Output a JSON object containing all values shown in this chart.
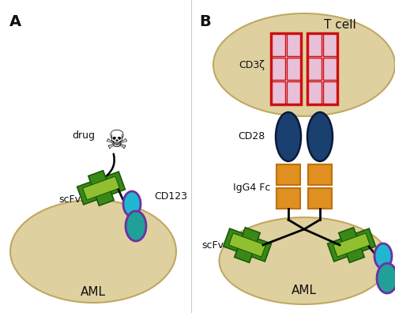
{
  "bg_color": "#ffffff",
  "cell_color": "#dfd0a0",
  "cell_edge_color": "#c0a860",
  "scfv_green_dark": "#3a8818",
  "scfv_green_light": "#90c030",
  "cd123_cyan": "#20b8d0",
  "cd123_teal": "#20a098",
  "cd123_purple": "#7030a0",
  "cd28_navy": "#1a4070",
  "cd28_mid": "#2060a0",
  "cd3z_pink": "#e8c0d8",
  "cd3z_red": "#cc1010",
  "igg4_orange": "#e09020",
  "igg4_line": "#c07010",
  "linker_color": "#101010",
  "text_color": "#101010",
  "label_a": "A",
  "label_b": "B",
  "label_aml": "AML",
  "label_tcell": "T cell",
  "label_cd3z": "CD3ζ",
  "label_cd28": "CD28",
  "label_igg4fc": "IgG4 Fc",
  "label_scfv": "scFv",
  "label_cd123": "CD123",
  "label_drug": "drug"
}
